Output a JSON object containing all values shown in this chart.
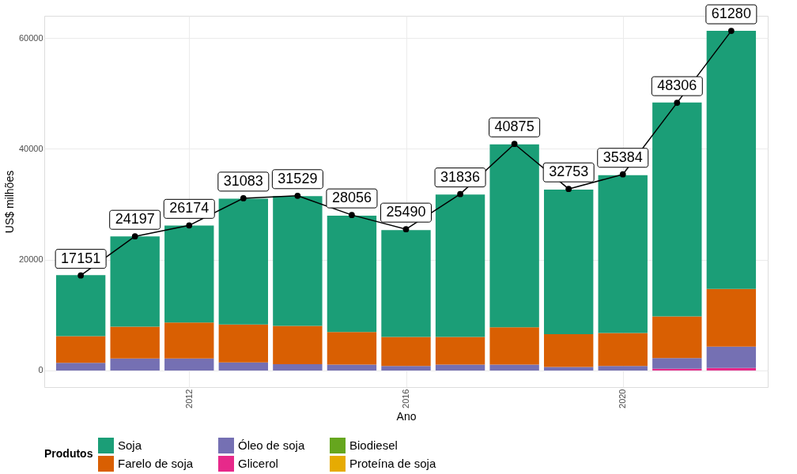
{
  "chart_data": {
    "type": "bar",
    "xlabel": "Ano",
    "ylabel": "US$ milhões",
    "legend_title": "Produtos",
    "x": [
      2010,
      2011,
      2012,
      2013,
      2014,
      2015,
      2016,
      2017,
      2018,
      2019,
      2020,
      2021,
      2022
    ],
    "xlim": [
      2009.4,
      2022.6
    ],
    "xticks": [
      2012,
      2016,
      2020
    ],
    "ylim": [
      -3000,
      64000
    ],
    "yticks": [
      0,
      20000,
      40000,
      60000
    ],
    "stacked": true,
    "grid": true,
    "legend": "bottom",
    "series": [
      {
        "name": "Proteína de soja",
        "color": "#e6ab02",
        "values": [
          0,
          0,
          0,
          0,
          0,
          0,
          0,
          0,
          0,
          0,
          0,
          0,
          0
        ]
      },
      {
        "name": "Biodiesel",
        "color": "#66a61e",
        "values": [
          0,
          0,
          0,
          0,
          0,
          0,
          0,
          0,
          0,
          0,
          0,
          0,
          0
        ]
      },
      {
        "name": "Glicerol",
        "color": "#e7298a",
        "values": [
          0,
          0,
          0,
          null,
          null,
          null,
          null,
          null,
          null,
          null,
          null,
          300,
          450
        ]
      },
      {
        "name": "Óleo de soja",
        "color": "#7570b3",
        "values": [
          1400,
          2150,
          2150,
          1450,
          1150,
          1050,
          800,
          1050,
          1050,
          650,
          800,
          1950,
          3850
        ]
      },
      {
        "name": "Farelo de soja",
        "color": "#d95f02",
        "values": [
          4800,
          5750,
          6500,
          6850,
          6900,
          5900,
          5250,
          5000,
          6750,
          5900,
          5950,
          7500,
          10400
        ]
      },
      {
        "name": "Soja",
        "color": "#1b9e77",
        "values": [
          11000,
          16300,
          17500,
          22700,
          23400,
          21000,
          19300,
          25700,
          33000,
          26100,
          28500,
          38600,
          46600
        ]
      },
      {
        "type": "line",
        "color": "#000000",
        "marker": "circle",
        "data_labels": true,
        "values": [
          17151,
          24197,
          26174,
          31083,
          31529,
          28056,
          25490,
          31836,
          40875,
          32753,
          35384,
          48306,
          61280
        ]
      }
    ]
  }
}
